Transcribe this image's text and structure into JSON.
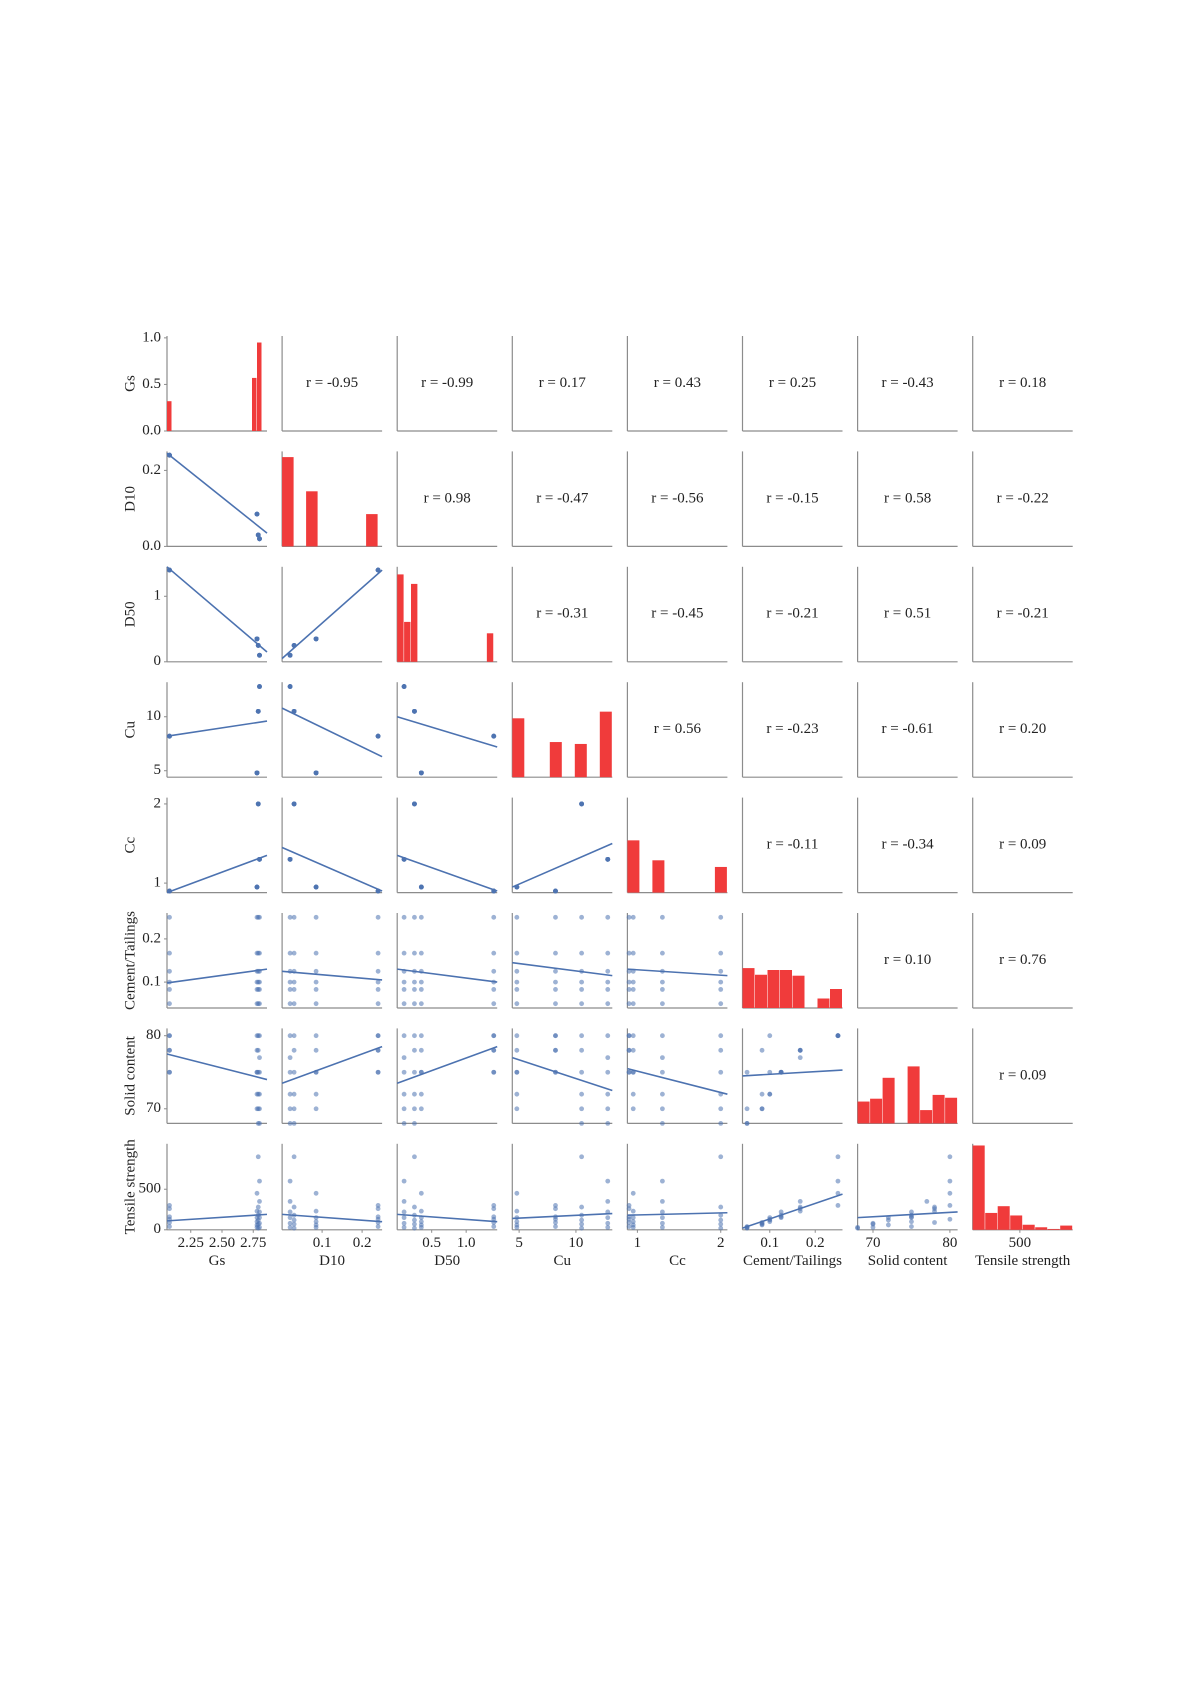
{
  "chart_data": {
    "type": "pairplot",
    "hist_color": "#f03b3b",
    "point_color": "#4c72b0",
    "axis_color": "#8c8c8c",
    "variables": [
      {
        "name": "Gs",
        "lim": [
          2.06,
          2.86
        ],
        "xticks": [
          2.25,
          {
            "value": 2.5,
            "label": "2.50"
          },
          2.75
        ],
        "values": [
          2.08,
          2.08,
          2.08,
          2.08,
          2.08,
          2.08,
          2.78,
          2.78,
          2.78,
          2.78,
          2.78,
          2.78,
          2.79,
          2.79,
          2.79,
          2.79,
          2.79,
          2.79,
          2.8,
          2.8,
          2.8,
          2.8,
          2.8,
          2.8
        ],
        "hist": {
          "bins": [
            2.06,
            2.1,
            2.14,
            2.18,
            2.22,
            2.26,
            2.3,
            2.34,
            2.38,
            2.42,
            2.46,
            2.5,
            2.54,
            2.58,
            2.62,
            2.66,
            2.7,
            2.74,
            2.78,
            2.82,
            2.86
          ],
          "counts": [
            0.32,
            0,
            0,
            0,
            0,
            0,
            0,
            0,
            0,
            0,
            0,
            0,
            0,
            0,
            0,
            0,
            0,
            0.57,
            0.95,
            0
          ],
          "ylim": [
            0,
            1.02
          ],
          "yticks": [
            {
              "value": 0,
              "label": "0.0"
            },
            0.5,
            {
              "value": 1,
              "label": "1.0"
            }
          ]
        },
        "r_labels": [
          "r = -0.95",
          "r = -0.99",
          "r = 0.17",
          "r = 0.43",
          "r = 0.25",
          "r = -0.43",
          "r = 0.18"
        ]
      },
      {
        "name": "D10",
        "lim": [
          0,
          0.25
        ],
        "xticks": [
          0.1,
          0.2
        ],
        "yticks": [
          {
            "value": 0,
            "label": "0.0"
          },
          0.2
        ],
        "values": [
          0.24,
          0.24,
          0.24,
          0.24,
          0.24,
          0.24,
          0.085,
          0.085,
          0.085,
          0.085,
          0.085,
          0.085,
          0.03,
          0.03,
          0.03,
          0.03,
          0.03,
          0.03,
          0.02,
          0.02,
          0.02,
          0.02,
          0.02,
          0.02
        ],
        "hist": {
          "bins": [
            0,
            0.03,
            0.06,
            0.09,
            0.12,
            0.15,
            0.18,
            0.21,
            0.24
          ],
          "counts": [
            9.4,
            0,
            5.8,
            0,
            0,
            0,
            0,
            3.4
          ],
          "ylim": [
            0,
            10
          ]
        },
        "fits": [
          [
            0.245,
            0.035
          ]
        ],
        "r_labels": [
          "r = 0.98",
          "r = -0.47",
          "r = -0.56",
          "r = -0.15",
          "r = 0.58",
          "r = -0.22"
        ]
      },
      {
        "name": "D50",
        "lim": [
          0,
          1.45
        ],
        "xticks": [
          0.5,
          {
            "value": 1,
            "label": "1.0"
          }
        ],
        "yticks": [
          0,
          1
        ],
        "values": [
          1.4,
          1.4,
          1.4,
          1.4,
          1.4,
          1.4,
          0.35,
          0.35,
          0.35,
          0.35,
          0.35,
          0.35,
          0.25,
          0.25,
          0.25,
          0.25,
          0.25,
          0.25,
          0.1,
          0.1,
          0.1,
          0.1,
          0.1,
          0.1
        ],
        "hist": {
          "bins": [
            0,
            0.1,
            0.2,
            0.3,
            0.4,
            0.5,
            0.6,
            0.7,
            0.8,
            0.9,
            1,
            1.1,
            1.2,
            1.3,
            1.4
          ],
          "counts": [
            0.92,
            0.42,
            0.82,
            0,
            0,
            0,
            0,
            0,
            0,
            0,
            0,
            0,
            0,
            0.3
          ],
          "ylim": [
            0,
            1
          ]
        },
        "fits": [
          [
            1.45,
            0.15
          ],
          [
            0.05,
            1.4
          ]
        ],
        "r_labels": [
          "r = -0.31",
          "r = -0.45",
          "r = -0.21",
          "r = 0.51",
          "r = -0.21"
        ]
      },
      {
        "name": "Cu",
        "lim": [
          4.4,
          13.2
        ],
        "xticks": [
          5,
          10
        ],
        "yticks": [
          5,
          10
        ],
        "values": [
          8.2,
          8.2,
          8.2,
          8.2,
          8.2,
          8.2,
          4.8,
          4.8,
          4.8,
          4.8,
          4.8,
          4.8,
          10.5,
          10.5,
          10.5,
          10.5,
          10.5,
          10.5,
          12.8,
          12.8,
          12.8,
          12.8,
          12.8,
          12.8
        ],
        "hist": {
          "bins": [
            4.4,
            5.5,
            6.6,
            7.7,
            8.8,
            9.9,
            11,
            12.1,
            13.2
          ],
          "counts": [
            0.62,
            0,
            0,
            0.37,
            0,
            0.35,
            0,
            0.69
          ],
          "ylim": [
            0,
            1
          ]
        },
        "fits": [
          [
            8.2,
            9.6
          ],
          [
            10.8,
            6.3
          ],
          [
            10,
            7.2
          ]
        ],
        "r_labels": [
          "r = 0.56",
          "r = -0.23",
          "r = -0.61",
          "r = 0.20"
        ]
      },
      {
        "name": "Cc",
        "lim": [
          0.88,
          2.08
        ],
        "xticks": [
          1,
          2
        ],
        "yticks": [
          1,
          2
        ],
        "values": [
          0.9,
          0.9,
          0.9,
          0.9,
          0.9,
          0.9,
          0.95,
          0.95,
          0.95,
          0.95,
          0.95,
          0.95,
          2,
          2,
          2,
          2,
          2,
          2,
          1.3,
          1.3,
          1.3,
          1.3,
          1.3,
          1.3
        ],
        "hist": {
          "bins": [
            0.88,
            1.03,
            1.18,
            1.33,
            1.48,
            1.63,
            1.78,
            1.93,
            2.08
          ],
          "counts": [
            0.55,
            0,
            0.34,
            0,
            0,
            0,
            0,
            0.27
          ],
          "ylim": [
            0,
            1
          ]
        },
        "fits": [
          [
            0.88,
            1.35
          ],
          [
            1.45,
            0.9
          ],
          [
            1.35,
            0.9
          ],
          [
            0.95,
            1.5
          ]
        ],
        "r_labels": [
          "r = -0.11",
          "r = -0.34",
          "r = 0.09"
        ]
      },
      {
        "name": "Cement/Tailings",
        "lim": [
          0.04,
          0.26
        ],
        "xticks": [
          0.1,
          0.2
        ],
        "yticks": [
          0.1,
          0.2
        ],
        "values": [
          0.05,
          0.083,
          0.1,
          0.125,
          0.167,
          0.25,
          0.05,
          0.083,
          0.1,
          0.125,
          0.167,
          0.25,
          0.05,
          0.083,
          0.1,
          0.125,
          0.167,
          0.25,
          0.05,
          0.083,
          0.1,
          0.125,
          0.167,
          0.25
        ],
        "hist": {
          "bins": [
            0.04,
            0.0675,
            0.095,
            0.1225,
            0.15,
            0.1775,
            0.205,
            0.2325,
            0.26
          ],
          "counts": [
            0.42,
            0.35,
            0.4,
            0.4,
            0.34,
            0,
            0.1,
            0.2
          ],
          "ylim": [
            0,
            1
          ]
        },
        "fits": [
          [
            0.098,
            0.13
          ],
          [
            0.125,
            0.105
          ],
          [
            0.13,
            0.1
          ],
          [
            0.145,
            0.115
          ],
          [
            0.13,
            0.115
          ]
        ],
        "r_labels": [
          "r = 0.10",
          "r = 0.76"
        ]
      },
      {
        "name": "Solid content",
        "lim": [
          68,
          81
        ],
        "xticks": [
          70,
          80
        ],
        "yticks": [
          70,
          80
        ],
        "values": [
          75,
          78,
          80,
          75,
          78,
          80,
          70,
          72,
          75,
          75,
          78,
          80,
          68,
          70,
          72,
          75,
          78,
          80,
          68,
          70,
          72,
          75,
          77,
          80
        ],
        "hist": {
          "bins": [
            68,
            69.625,
            71.25,
            72.875,
            74.5,
            76.125,
            77.75,
            79.375,
            81
          ],
          "counts": [
            0.23,
            0.26,
            0.48,
            0,
            0.6,
            0.14,
            0.3,
            0.27
          ],
          "ylim": [
            0,
            1
          ]
        },
        "fits": [
          [
            77.5,
            74
          ],
          [
            73.5,
            78.5
          ],
          [
            73.5,
            78.5
          ],
          [
            77,
            72.5
          ],
          [
            75.5,
            72
          ],
          [
            74.5,
            75.3
          ]
        ],
        "r_labels": [
          "r = 0.09"
        ]
      },
      {
        "name": "Tensile strength",
        "lim": [
          0,
          1060
        ],
        "xticks": [
          500
        ],
        "yticks": [
          0,
          500
        ],
        "values": [
          40,
          90,
          130,
          160,
          260,
          300,
          30,
          60,
          100,
          150,
          230,
          450,
          20,
          70,
          120,
          180,
          280,
          900,
          30,
          80,
          150,
          220,
          350,
          600
        ],
        "hist": {
          "bins": [
            0,
            132.5,
            265,
            397.5,
            530,
            662.5,
            795,
            927.5,
            1060
          ],
          "counts": [
            1,
            0.2,
            0.28,
            0.17,
            0.06,
            0.03,
            0.01,
            0.05
          ],
          "ylim": [
            0,
            1.02
          ]
        },
        "fits": [
          [
            110,
            190
          ],
          [
            190,
            100
          ],
          [
            190,
            100
          ],
          [
            140,
            200
          ],
          [
            180,
            210
          ],
          [
            20,
            440
          ],
          [
            150,
            220
          ]
        ]
      }
    ]
  }
}
